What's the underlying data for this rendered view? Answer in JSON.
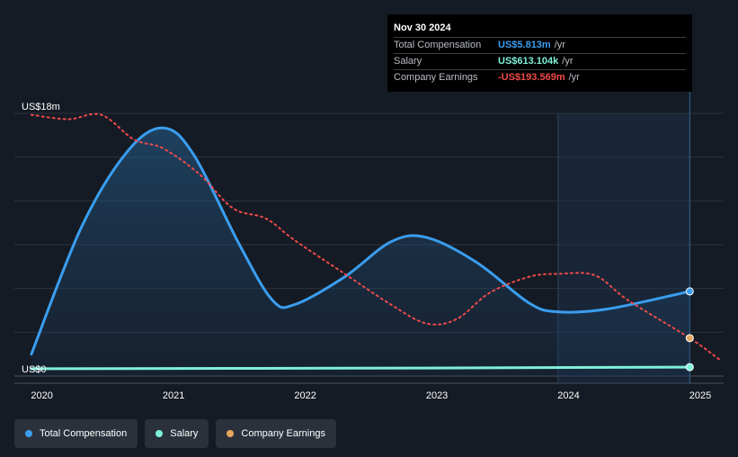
{
  "tooltip": {
    "date": "Nov 30 2024",
    "rows": [
      {
        "label": "Total Compensation",
        "value": "US$5.813m",
        "unit": "/yr",
        "color": "#3a9ef0"
      },
      {
        "label": "Salary",
        "value": "US$613.104k",
        "unit": "/yr",
        "color": "#7ff0d9"
      },
      {
        "label": "Company Earnings",
        "value": "-US$193.569m",
        "unit": "/yr",
        "color": "#f04a4a"
      }
    ]
  },
  "legend": [
    {
      "label": "Total Compensation",
      "color": "#3a9ef0"
    },
    {
      "label": "Salary",
      "color": "#7ff0d9"
    },
    {
      "label": "Company Earnings",
      "color": "#e8a75f"
    }
  ],
  "chart_data": {
    "type": "line",
    "y_tick_labels": [
      {
        "value": 0,
        "label": "US$0"
      },
      {
        "value": 18,
        "label": "US$18m"
      }
    ],
    "ylim": [
      0,
      18
    ],
    "xlim": [
      2019.9,
      2025.15
    ],
    "x_tick_labels": [
      "2020",
      "2021",
      "2022",
      "2023",
      "2024",
      "2025"
    ],
    "highlight_start": 2023.92,
    "highlight_end": 2024.92,
    "series": [
      {
        "name": "Total Compensation",
        "color": "#3a9ef0",
        "points": [
          [
            2019.92,
            1.5
          ],
          [
            2020.3,
            10.2
          ],
          [
            2020.65,
            15.4
          ],
          [
            2020.92,
            17.0
          ],
          [
            2021.15,
            15.2
          ],
          [
            2021.5,
            9.0
          ],
          [
            2021.75,
            5.2
          ],
          [
            2021.92,
            4.9
          ],
          [
            2022.3,
            6.8
          ],
          [
            2022.65,
            9.2
          ],
          [
            2022.92,
            9.5
          ],
          [
            2023.3,
            7.8
          ],
          [
            2023.7,
            5.0
          ],
          [
            2023.92,
            4.4
          ],
          [
            2024.3,
            4.6
          ],
          [
            2024.92,
            5.8
          ]
        ]
      },
      {
        "name": "Salary",
        "color": "#7ff0d9",
        "points": [
          [
            2019.92,
            0.5
          ],
          [
            2022.92,
            0.55
          ],
          [
            2024.92,
            0.61
          ]
        ]
      },
      {
        "name": "Company Earnings",
        "color": "#f04a4a",
        "marker_color": "#e8a75f",
        "points": [
          [
            2019.92,
            17.9
          ],
          [
            2020.2,
            17.6
          ],
          [
            2020.45,
            17.9
          ],
          [
            2020.7,
            16.2
          ],
          [
            2020.92,
            15.6
          ],
          [
            2021.2,
            13.8
          ],
          [
            2021.45,
            11.5
          ],
          [
            2021.7,
            10.8
          ],
          [
            2021.92,
            9.3
          ],
          [
            2022.3,
            7.0
          ],
          [
            2022.65,
            4.9
          ],
          [
            2022.92,
            3.6
          ],
          [
            2023.15,
            3.9
          ],
          [
            2023.4,
            5.7
          ],
          [
            2023.7,
            6.8
          ],
          [
            2023.92,
            7.0
          ],
          [
            2024.2,
            6.9
          ],
          [
            2024.45,
            5.2
          ],
          [
            2024.92,
            2.6
          ],
          [
            2025.15,
            1.1
          ]
        ]
      }
    ]
  }
}
